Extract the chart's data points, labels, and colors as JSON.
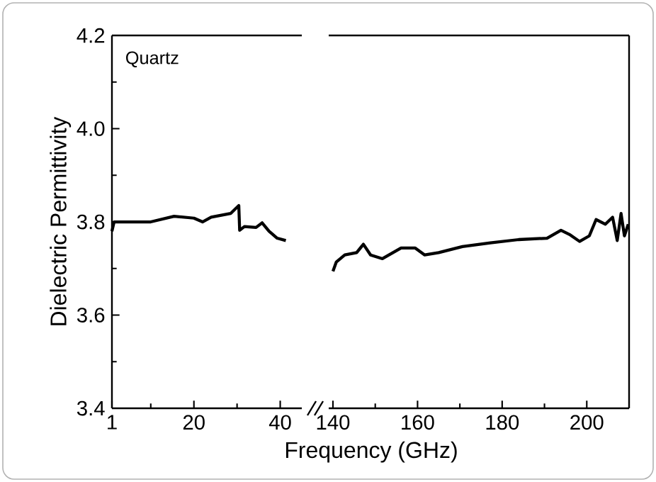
{
  "chart_data": [
    {
      "type": "line",
      "ylabel": "Dielectric Permittivity",
      "xlabel": "Frequency (GHz)",
      "annotations": [
        "Quartz"
      ],
      "xlim": [
        1,
        45
      ],
      "xticks": [
        1,
        {
          "value": 10,
          "label": null
        },
        20,
        {
          "value": 30,
          "label": null
        },
        40
      ],
      "ylim": [
        3.4,
        4.2
      ],
      "yticks": [
        3.4,
        {
          "value": 3.5,
          "label": null
        },
        3.6,
        {
          "value": 3.7,
          "label": null
        },
        3.8,
        {
          "value": 3.9,
          "label": null
        },
        {
          "value": 4,
          "label": "4.0"
        },
        {
          "value": 4.1,
          "label": null
        },
        4.2
      ],
      "series": [
        {
          "color": "#000000",
          "x": [
            1,
            1.5,
            3,
            6,
            10,
            15.4,
            20,
            22,
            24,
            28.5,
            30.4,
            30.6,
            31.7,
            34.4,
            35.8,
            37.4,
            39.3,
            41.3
          ],
          "values": [
            3.78,
            3.8,
            3.8,
            3.8,
            3.8,
            3.812,
            3.808,
            3.8,
            3.81,
            3.818,
            3.835,
            3.782,
            3.79,
            3.788,
            3.798,
            3.78,
            3.765,
            3.76
          ]
        }
      ]
    },
    {
      "type": "line",
      "tick_labels": "x",
      "xlim": [
        139,
        210
      ],
      "xticks": [
        140,
        {
          "value": 150,
          "label": null
        },
        160,
        {
          "value": 170,
          "label": null
        },
        180,
        {
          "value": 190,
          "label": null
        },
        200
      ],
      "ylim": [
        3.4,
        4.2
      ],
      "series": [
        {
          "color": "#000000",
          "x": [
            140,
            140.8,
            142.8,
            145.6,
            147.2,
            148.9,
            151.7,
            156.1,
            159.4,
            161.7,
            165,
            170.6,
            177.2,
            183.9,
            190.6,
            193.9,
            196.1,
            198.3,
            200.6,
            202.2,
            204.4,
            206.1,
            207.2,
            208.1,
            208.9,
            209.8
          ],
          "values": [
            3.694,
            3.714,
            3.729,
            3.734,
            3.752,
            3.729,
            3.721,
            3.744,
            3.744,
            3.729,
            3.734,
            3.747,
            3.755,
            3.762,
            3.765,
            3.782,
            3.772,
            3.758,
            3.77,
            3.805,
            3.795,
            3.81,
            3.76,
            3.818,
            3.77,
            3.795
          ]
        }
      ]
    }
  ]
}
